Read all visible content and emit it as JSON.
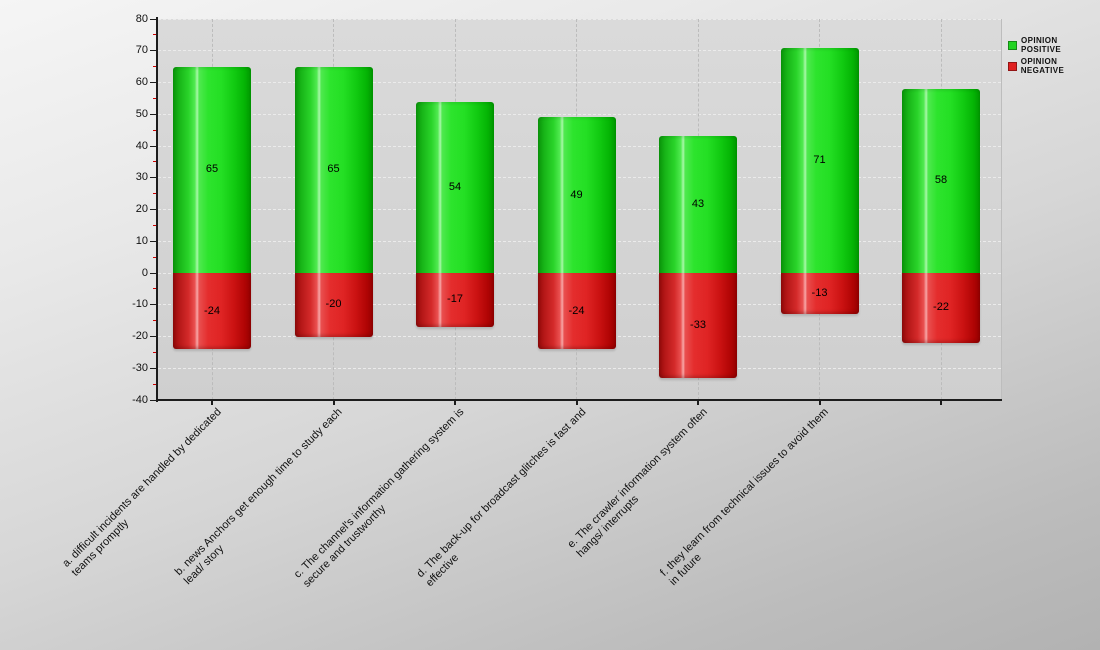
{
  "chart_data": {
    "type": "bar",
    "title": "",
    "categories": [
      "a. difficult incidents are handled by dedicated\nteams promptly",
      "b. news Anchors get enough time to study each\nlead/ story",
      "c. The channel's information gathering system is\nsecure and trustworthy",
      "d. The back-up for broadcast glitches is fast and\neffective",
      "e. The crawler information system often\nhangs/ interrupts",
      "f. they learn from technical issues to avoid them\nin future",
      ""
    ],
    "series": [
      {
        "name": "OPINION POSITIVE",
        "color": "#22d422",
        "values": [
          65,
          65,
          54,
          49,
          43,
          71,
          58
        ]
      },
      {
        "name": "OPINION NEGATIVE",
        "color": "#e02020",
        "values": [
          -24,
          -20,
          -17,
          -24,
          -33,
          -13,
          -22
        ]
      }
    ],
    "y_axis": {
      "min": -40,
      "max": 80,
      "major_step": 10,
      "minor_step": 5,
      "tick_labels": [
        "80",
        "70",
        "60",
        "50",
        "40",
        "30",
        "20",
        "10",
        "0",
        "-10",
        "-20",
        "-30",
        "-40"
      ]
    },
    "grid": true,
    "value_labels_shown": true,
    "legend_position": "top-right",
    "colors": {
      "minor_tick": "#cc0000",
      "axis": "#1c1c1c",
      "plot_background": "#d4d4d4"
    }
  }
}
